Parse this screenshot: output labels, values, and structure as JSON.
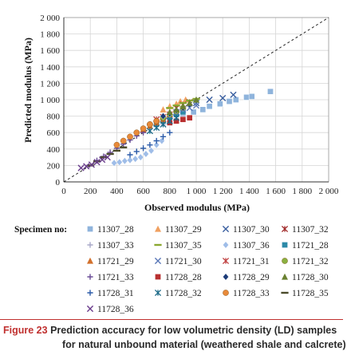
{
  "chart_data": {
    "type": "scatter",
    "xlabel": "Observed modulus (MPa)",
    "ylabel": "Predicted modulus (MPa)",
    "xlim": [
      0,
      2000
    ],
    "ylim": [
      0,
      2000
    ],
    "xticks": [
      "0",
      "200",
      "400",
      "600",
      "800",
      "1 000",
      "1 200",
      "1 400",
      "1 600",
      "1 800",
      "2 000"
    ],
    "yticks": [
      "0",
      "200",
      "400",
      "600",
      "800",
      "1 000",
      "1 200",
      "1 400",
      "1 600",
      "1 800",
      "2 000"
    ],
    "grid": true,
    "reference_line": "dashed 1:1",
    "legend_title": "Specimen no:",
    "legend_position": "bottom",
    "series": [
      {
        "name": "11307_28",
        "marker": "square",
        "color": "#8fb4dc",
        "x": [
          900,
          980,
          1050,
          1100,
          1180,
          1250,
          1300,
          1380,
          1420,
          1560
        ],
        "y": [
          800,
          850,
          880,
          920,
          950,
          980,
          1000,
          1030,
          1040,
          1100
        ]
      },
      {
        "name": "11307_29",
        "marker": "triangle",
        "color": "#f0a060",
        "x": [
          750,
          800,
          850,
          880,
          920
        ],
        "y": [
          880,
          920,
          950,
          980,
          1000
        ]
      },
      {
        "name": "11307_30",
        "marker": "x",
        "color": "#3a5fa0",
        "x": [
          1000,
          1100,
          1200,
          1280
        ],
        "y": [
          960,
          1000,
          1020,
          1060
        ]
      },
      {
        "name": "11307_32",
        "marker": "asterisk",
        "color": "#a02828",
        "x": [
          850,
          900,
          950
        ],
        "y": [
          900,
          940,
          970
        ]
      },
      {
        "name": "11307_33",
        "marker": "plus",
        "color": "#a9a9c9",
        "x": [
          750,
          800,
          850,
          900
        ],
        "y": [
          700,
          730,
          760,
          790
        ]
      },
      {
        "name": "11307_35",
        "marker": "dash",
        "color": "#8aa830",
        "x": [
          800,
          850,
          900,
          950,
          1000
        ],
        "y": [
          900,
          930,
          960,
          990,
          1010
        ]
      },
      {
        "name": "11307_36",
        "marker": "diamond",
        "color": "#9fbde8",
        "x": [
          380,
          420,
          460,
          500,
          540,
          580,
          620,
          660,
          700,
          740
        ],
        "y": [
          230,
          240,
          255,
          265,
          280,
          300,
          340,
          380,
          450,
          500
        ]
      },
      {
        "name": "11721_28",
        "marker": "square",
        "color": "#2d8aa8",
        "x": [
          700,
          750,
          800,
          850,
          900
        ],
        "y": [
          700,
          740,
          780,
          820,
          850
        ]
      },
      {
        "name": "11721_29",
        "marker": "triangle",
        "color": "#d2702c",
        "x": [
          600,
          650,
          700,
          750
        ],
        "y": [
          640,
          680,
          720,
          760
        ]
      },
      {
        "name": "11721_30",
        "marker": "x",
        "color": "#5a78b8",
        "x": [
          850,
          900,
          950,
          1000
        ],
        "y": [
          850,
          880,
          900,
          930
        ]
      },
      {
        "name": "11721_31",
        "marker": "asterisk",
        "color": "#c04040",
        "x": [
          700,
          750,
          800
        ],
        "y": [
          760,
          790,
          820
        ]
      },
      {
        "name": "11721_32",
        "marker": "circle",
        "color": "#8ab040",
        "x": [
          650,
          700,
          750,
          800,
          850,
          900
        ],
        "y": [
          700,
          740,
          780,
          820,
          860,
          900
        ]
      },
      {
        "name": "11721_33",
        "marker": "plus",
        "color": "#6a4c96",
        "x": [
          250,
          300,
          350,
          400,
          450,
          500,
          550,
          600
        ],
        "y": [
          260,
          310,
          360,
          410,
          460,
          510,
          560,
          600
        ]
      },
      {
        "name": "11728_28",
        "marker": "square",
        "color": "#b83030",
        "x": [
          800,
          850,
          900,
          950
        ],
        "y": [
          720,
          740,
          760,
          780
        ]
      },
      {
        "name": "11728_29",
        "marker": "diamond",
        "color": "#1c3c78",
        "x": [
          750,
          800,
          850,
          900,
          950
        ],
        "y": [
          800,
          830,
          870,
          900,
          940
        ]
      },
      {
        "name": "11728_30",
        "marker": "triangle",
        "color": "#6a8030",
        "x": [
          800,
          850,
          900,
          950,
          1000
        ],
        "y": [
          850,
          880,
          920,
          960,
          1000
        ]
      },
      {
        "name": "11728_31",
        "marker": "plus",
        "color": "#2a5aa8",
        "x": [
          500,
          550,
          600,
          650,
          700,
          750,
          800
        ],
        "y": [
          330,
          370,
          410,
          450,
          500,
          550,
          600
        ]
      },
      {
        "name": "11728_32",
        "marker": "asterisk",
        "color": "#1c6a88",
        "x": [
          650,
          700,
          750,
          800,
          850
        ],
        "y": [
          620,
          660,
          700,
          740,
          780
        ]
      },
      {
        "name": "11728_33",
        "marker": "circle",
        "color": "#e88a3a",
        "x": [
          400,
          450,
          500,
          550,
          600,
          650,
          700
        ],
        "y": [
          450,
          500,
          550,
          600,
          650,
          700,
          740
        ]
      },
      {
        "name": "11728_35",
        "marker": "dash",
        "color": "#4a4a2a",
        "x": [
          200,
          250,
          300,
          350,
          400,
          450
        ],
        "y": [
          200,
          250,
          300,
          340,
          380,
          420
        ]
      },
      {
        "name": "11728_36",
        "marker": "x",
        "color": "#6a3c8c",
        "x": [
          130,
          170,
          210,
          250,
          290,
          330
        ],
        "y": [
          170,
          190,
          210,
          240,
          270,
          300
        ]
      }
    ]
  },
  "caption": {
    "figure_label": "Figure 23",
    "line1": "Prediction accuracy for low volumetric density (LD) samples",
    "line2": "for natural unbound material (weathered shale and calcrete)"
  }
}
